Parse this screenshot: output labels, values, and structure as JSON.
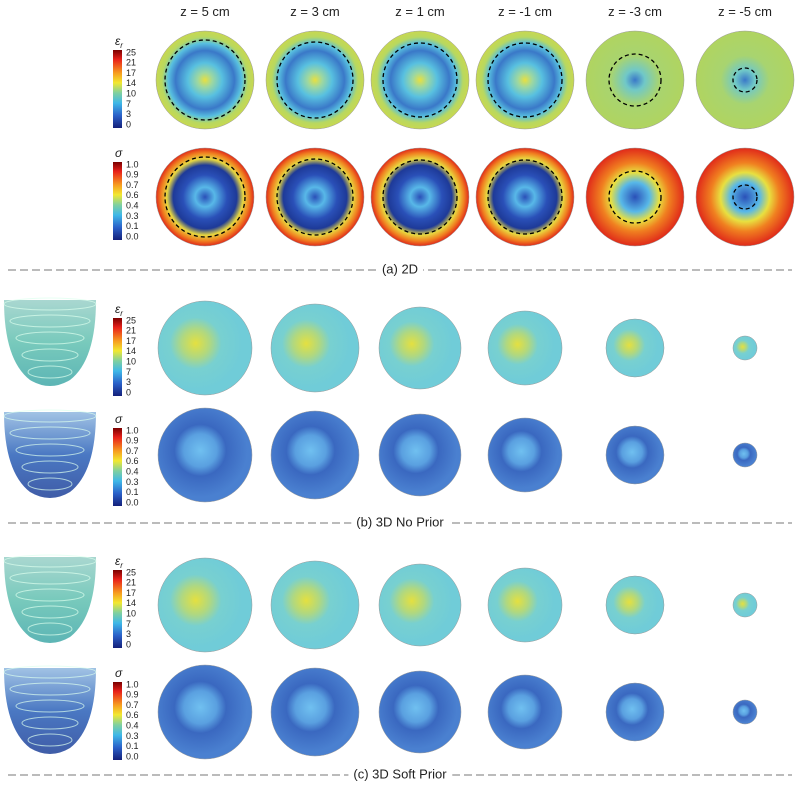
{
  "columns": [
    "z = 5 cm",
    "z = 3 cm",
    "z = 1 cm",
    "z = -1 cm",
    "z = -3 cm",
    "z = -5 cm"
  ],
  "colorbars": {
    "permittivity": {
      "symbol": "ε",
      "subscript": "r",
      "ticks": [
        "25",
        "21",
        "17",
        "14",
        "10",
        "7",
        "3",
        "0"
      ]
    },
    "conductivity": {
      "symbol": "σ",
      "ticks": [
        "1.0",
        "0.9",
        "0.7",
        "0.6",
        "0.4",
        "0.3",
        "0.1",
        "0.0"
      ]
    }
  },
  "sections": [
    {
      "caption": "(a) 2D"
    },
    {
      "caption": "(b) 3D No Prior"
    },
    {
      "caption": "(c) 3D Soft Prior"
    }
  ]
}
